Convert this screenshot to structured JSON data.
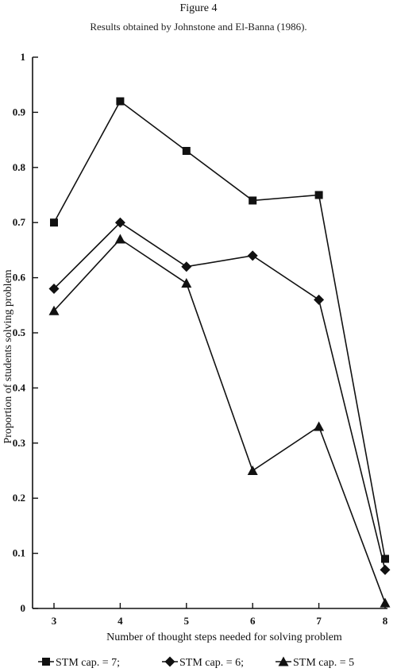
{
  "chart_data": {
    "type": "line",
    "title": "Figure 4",
    "subtitle": "Results obtained by Johnstone and El-Banna (1986).",
    "xlabel": "Number of thought steps needed for solving problem",
    "ylabel": "Proportion of students solving problem",
    "x": [
      3,
      4,
      5,
      6,
      7,
      8
    ],
    "xticks": [
      "3",
      "4",
      "5",
      "6",
      "7",
      "8"
    ],
    "yticks": [
      "0",
      "0.1",
      "0.2",
      "0.3",
      "0.4",
      "0.5",
      "0.6",
      "0.7",
      "0.8",
      "0.9",
      "1"
    ],
    "xlim": [
      3,
      8
    ],
    "ylim": [
      0,
      1
    ],
    "grid": false,
    "legend_position": "bottom",
    "series": [
      {
        "name": "STM cap. = 7;",
        "marker": "square",
        "values": [
          0.7,
          0.92,
          0.83,
          0.74,
          0.75,
          0.09
        ]
      },
      {
        "name": "STM cap. = 6;",
        "marker": "diamond",
        "values": [
          0.58,
          0.7,
          0.62,
          0.64,
          0.56,
          0.07
        ]
      },
      {
        "name": "STM cap. = 5",
        "marker": "triangle",
        "values": [
          0.54,
          0.67,
          0.59,
          0.25,
          0.33,
          0.01
        ]
      }
    ],
    "colors": {
      "line": "#111111",
      "marker": "#111111",
      "axis": "#111111"
    }
  }
}
